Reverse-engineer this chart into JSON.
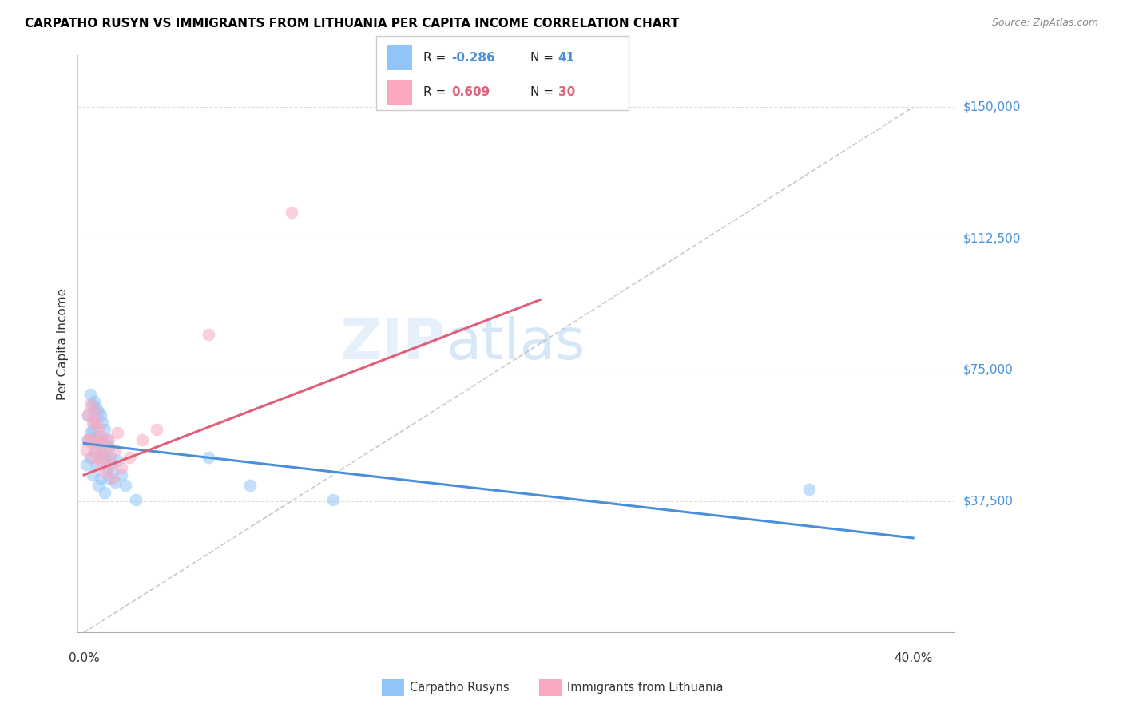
{
  "title": "CARPATHO RUSYN VS IMMIGRANTS FROM LITHUANIA PER CAPITA INCOME CORRELATION CHART",
  "source": "Source: ZipAtlas.com",
  "ylabel": "Per Capita Income",
  "ytick_vals": [
    37500,
    75000,
    112500,
    150000
  ],
  "ytick_labels": [
    "$37,500",
    "$75,000",
    "$112,500",
    "$150,000"
  ],
  "xlim": [
    -0.003,
    0.42
  ],
  "ylim": [
    0,
    165000
  ],
  "color_blue": "#92C5F7",
  "color_pink": "#F9A8C0",
  "color_blue_line": "#4A90D9",
  "color_pink_line": "#E0607A",
  "color_gray_dash": "#BBBBBB",
  "watermark_zip": "ZIP",
  "watermark_atlas": "atlas",
  "blue_x": [
    0.001,
    0.002,
    0.002,
    0.003,
    0.003,
    0.003,
    0.004,
    0.004,
    0.004,
    0.005,
    0.005,
    0.005,
    0.006,
    0.006,
    0.006,
    0.007,
    0.007,
    0.007,
    0.008,
    0.008,
    0.008,
    0.009,
    0.009,
    0.01,
    0.01,
    0.01,
    0.011,
    0.011,
    0.012,
    0.012,
    0.013,
    0.014,
    0.015,
    0.016,
    0.018,
    0.02,
    0.025,
    0.06,
    0.08,
    0.12,
    0.35
  ],
  "blue_y": [
    48000,
    62000,
    55000,
    68000,
    57000,
    50000,
    65000,
    58000,
    45000,
    66000,
    60000,
    52000,
    64000,
    56000,
    48000,
    63000,
    55000,
    42000,
    62000,
    54000,
    44000,
    60000,
    51000,
    58000,
    50000,
    40000,
    55000,
    47000,
    53000,
    44000,
    50000,
    46000,
    43000,
    49000,
    45000,
    42000,
    38000,
    50000,
    42000,
    38000,
    41000
  ],
  "pink_x": [
    0.001,
    0.002,
    0.002,
    0.003,
    0.003,
    0.004,
    0.004,
    0.005,
    0.005,
    0.006,
    0.006,
    0.007,
    0.007,
    0.008,
    0.008,
    0.009,
    0.01,
    0.01,
    0.011,
    0.012,
    0.013,
    0.014,
    0.015,
    0.016,
    0.018,
    0.022,
    0.028,
    0.035,
    0.06,
    0.1
  ],
  "pink_y": [
    52000,
    62000,
    55000,
    65000,
    55000,
    60000,
    50000,
    63000,
    54000,
    60000,
    52000,
    58000,
    50000,
    56000,
    48000,
    54000,
    52000,
    46000,
    50000,
    55000,
    48000,
    44000,
    52000,
    57000,
    47000,
    50000,
    55000,
    58000,
    85000,
    120000
  ],
  "blue_line_x0": 0.0,
  "blue_line_x1": 0.4,
  "blue_line_y0": 54000,
  "blue_line_y1": 27000,
  "pink_line_x0": 0.0,
  "pink_line_x1": 0.22,
  "pink_line_y0": 45000,
  "pink_line_y1": 95000,
  "gray_line_x0": 0.0,
  "gray_line_x1": 0.4,
  "gray_line_y0": 0,
  "gray_line_y1": 150000
}
